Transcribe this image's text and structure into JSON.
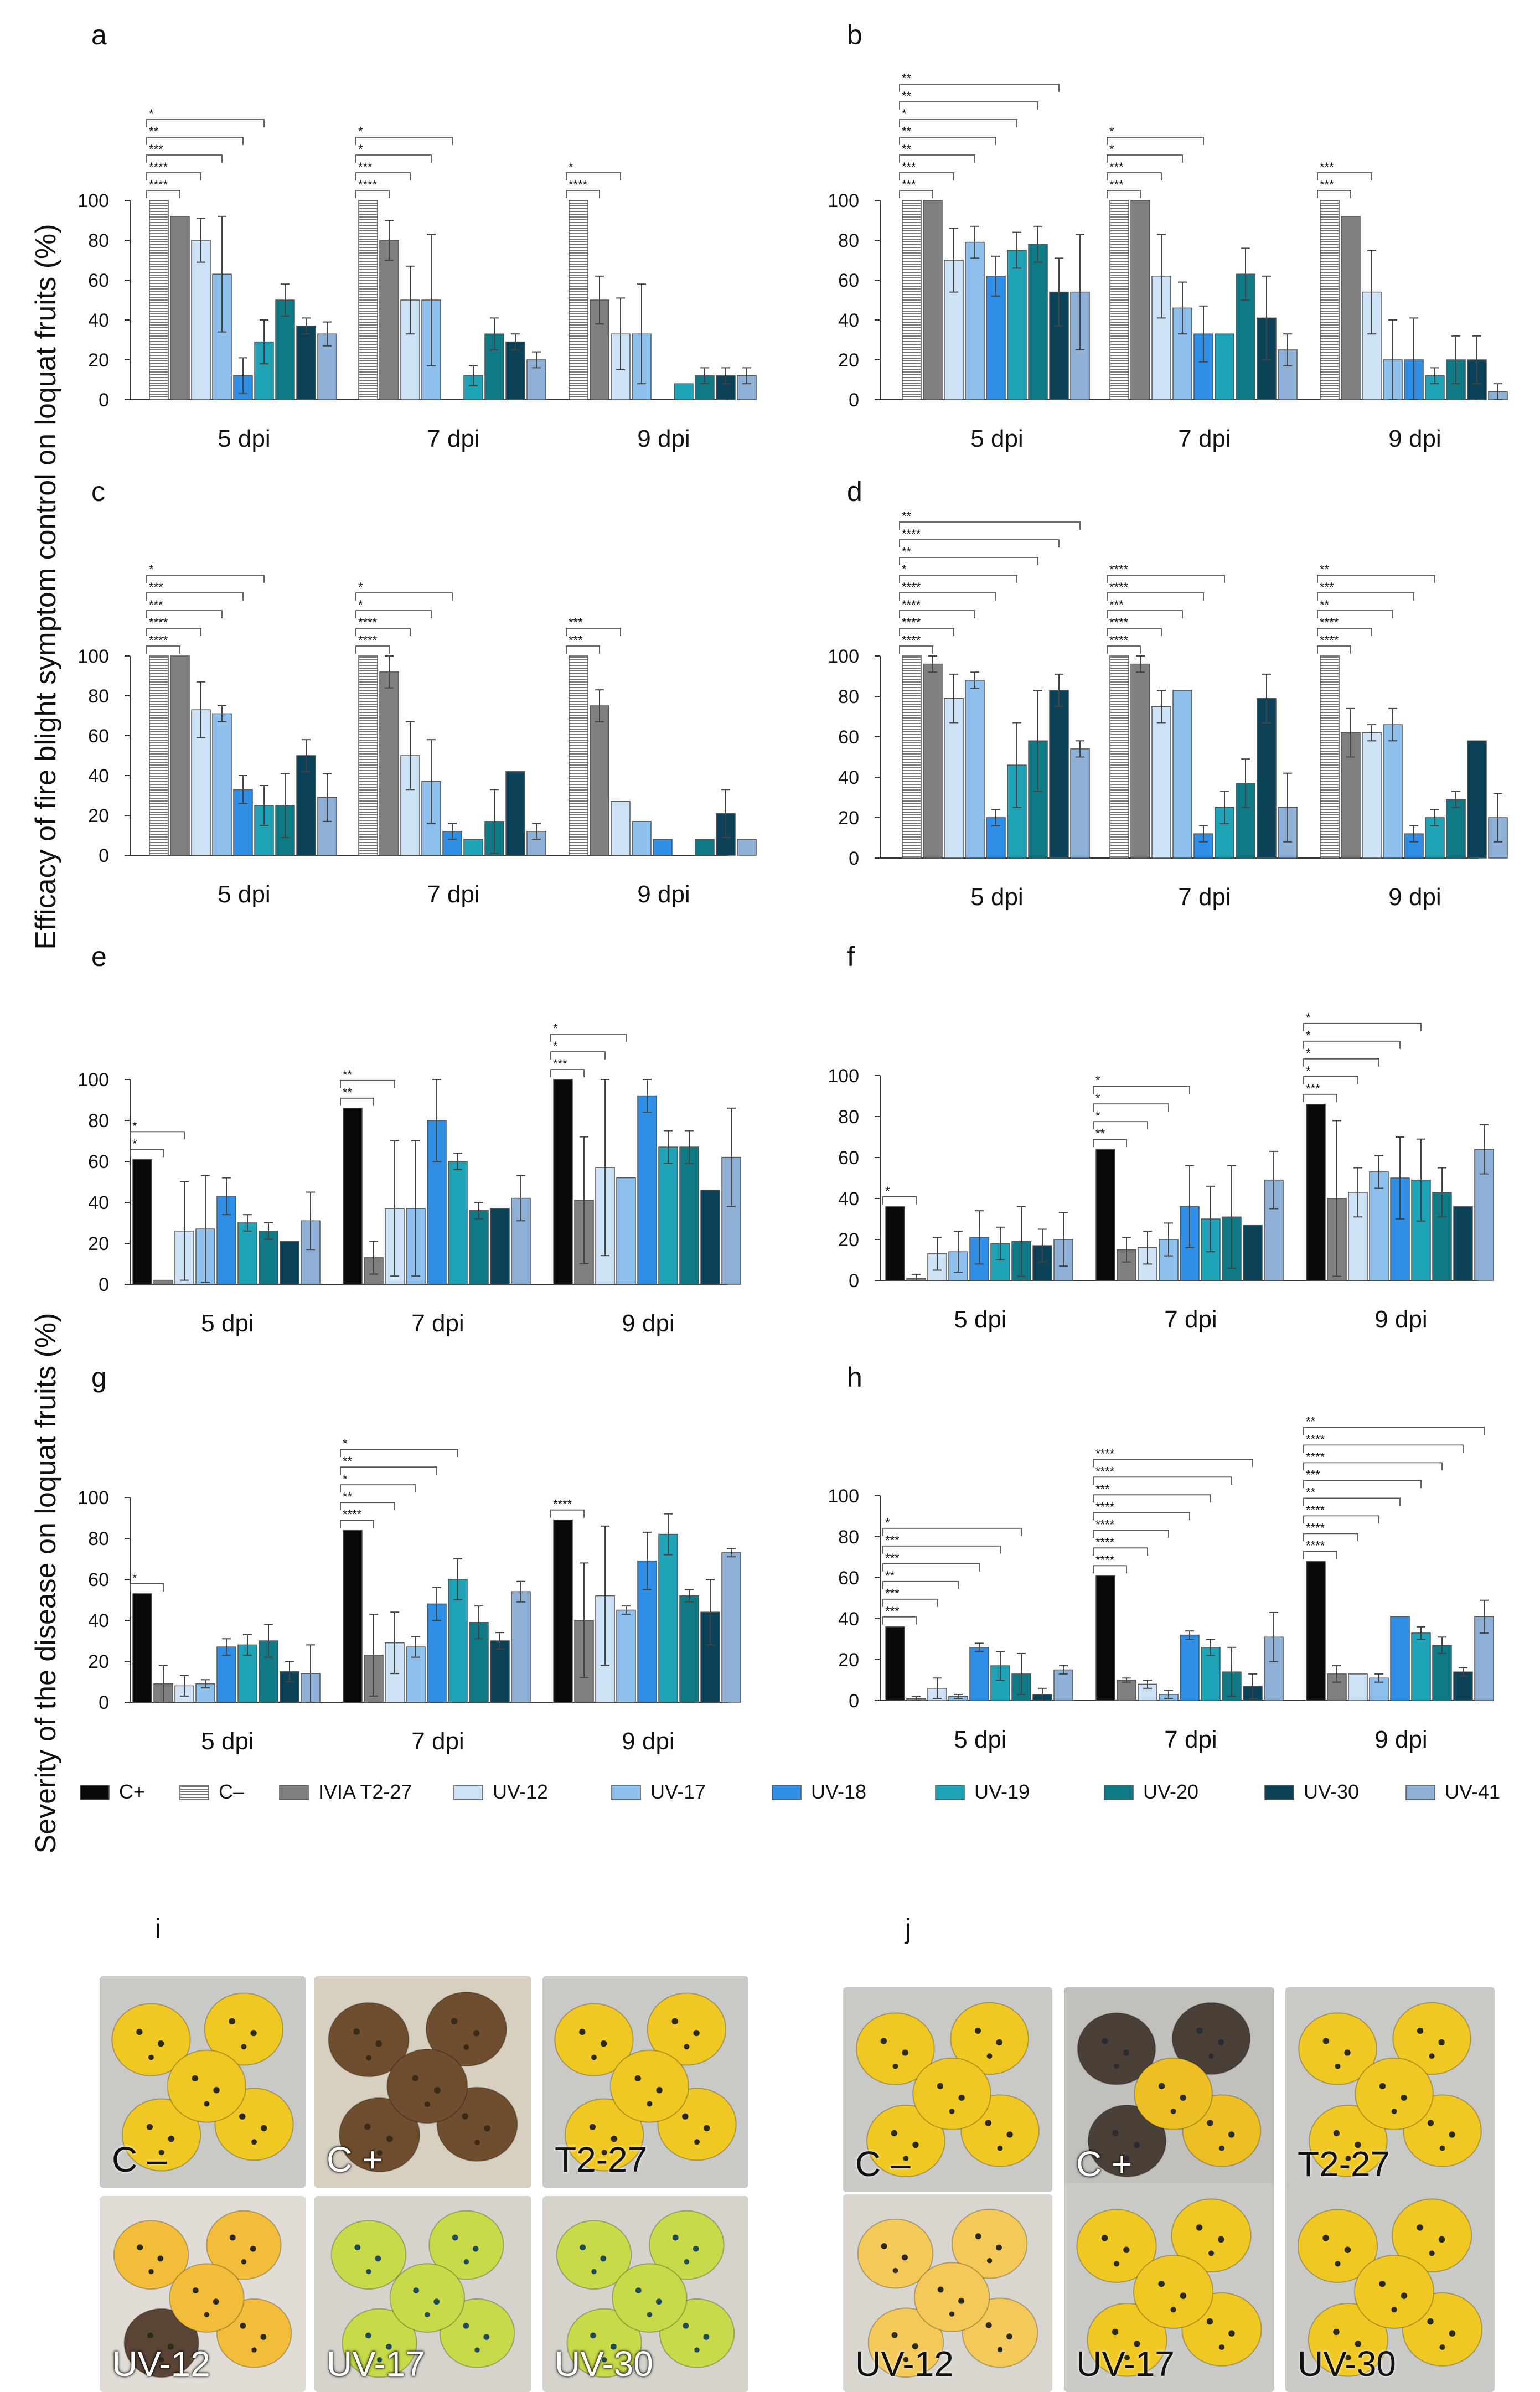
{
  "figure": {
    "ylabel_top": "Efficacy of fire blight symptom control on loquat fruits (%)",
    "ylabel_bottom": "Severity of the disease on loquat fruits (%)"
  },
  "colors": {
    "C+": "#0a0a0a",
    "C-": "#ffffff",
    "IVIA T2-27": "#7f7f7f",
    "UV-12": "#cfe3f7",
    "UV-17": "#8ec0ee",
    "UV-18": "#2f8fe6",
    "UV-19": "#1fa3b6",
    "UV-20": "#0f7a86",
    "UV-30": "#0c4257",
    "UV-41": "#8eb0d6"
  },
  "legend": [
    {
      "name": "C+",
      "color": "#0a0a0a"
    },
    {
      "name": "C–",
      "color": "#ffffff",
      "hatched": true
    },
    {
      "name": "IVIA T2-27",
      "color": "#7f7f7f"
    },
    {
      "name": "UV-12",
      "color": "#cfe3f7"
    },
    {
      "name": "UV-17",
      "color": "#8ec0ee"
    },
    {
      "name": "UV-18",
      "color": "#2f8fe6"
    },
    {
      "name": "UV-19",
      "color": "#1fa3b6"
    },
    {
      "name": "UV-20",
      "color": "#0f7a86"
    },
    {
      "name": "UV-30",
      "color": "#0c4257"
    },
    {
      "name": "UV-41",
      "color": "#8eb0d6"
    }
  ],
  "chart_data": [
    {
      "panel": "a",
      "type": "bar",
      "categories": [
        "5 dpi",
        "7 dpi",
        "9 dpi"
      ],
      "ylim": [
        0,
        100
      ],
      "yticks": [
        0,
        20,
        40,
        60,
        80,
        100
      ],
      "series_names": [
        "C-",
        "IVIA T2-27",
        "UV-12",
        "UV-17",
        "UV-18",
        "UV-19",
        "UV-20",
        "UV-30",
        "UV-41"
      ],
      "values": [
        [
          100,
          92,
          80,
          63,
          12,
          29,
          50,
          37,
          33
        ],
        [
          100,
          80,
          50,
          50,
          0,
          12,
          33,
          29,
          20
        ],
        [
          100,
          50,
          33,
          33,
          0,
          8,
          12,
          12,
          12
        ]
      ],
      "errors": [
        [
          0,
          0,
          11,
          29,
          9,
          11,
          8,
          4,
          6
        ],
        [
          0,
          10,
          17,
          33,
          0,
          5,
          8,
          4,
          4
        ],
        [
          0,
          12,
          18,
          25,
          0,
          0,
          4,
          4,
          4
        ]
      ],
      "annotations": [
        {
          "group": 0,
          "stars": [
            "****",
            "****",
            "***",
            "**",
            "*"
          ]
        },
        {
          "group": 1,
          "stars": [
            "****",
            "***",
            "*",
            "*"
          ]
        },
        {
          "group": 2,
          "stars": [
            "****",
            "*"
          ]
        }
      ]
    },
    {
      "panel": "b",
      "type": "bar",
      "categories": [
        "5 dpi",
        "7 dpi",
        "9 dpi"
      ],
      "ylim": [
        0,
        100
      ],
      "yticks": [
        0,
        20,
        40,
        60,
        80,
        100
      ],
      "series_names": [
        "C-",
        "IVIA T2-27",
        "UV-12",
        "UV-17",
        "UV-18",
        "UV-19",
        "UV-20",
        "UV-30",
        "UV-41"
      ],
      "values": [
        [
          100,
          100,
          70,
          79,
          62,
          75,
          78,
          54,
          54
        ],
        [
          100,
          100,
          62,
          46,
          33,
          33,
          63,
          41,
          25
        ],
        [
          100,
          92,
          54,
          20,
          20,
          12,
          20,
          20,
          4
        ]
      ],
      "errors": [
        [
          0,
          0,
          16,
          8,
          10,
          9,
          9,
          17,
          29
        ],
        [
          0,
          0,
          21,
          13,
          14,
          0,
          13,
          21,
          8
        ],
        [
          0,
          0,
          21,
          20,
          21,
          4,
          12,
          12,
          4
        ]
      ],
      "annotations": [
        {
          "group": 0,
          "stars": [
            "***",
            "***",
            "**",
            "**",
            "*",
            "**",
            "**"
          ]
        },
        {
          "group": 1,
          "stars": [
            "***",
            "***",
            "*",
            "*"
          ]
        },
        {
          "group": 2,
          "stars": [
            "***",
            "***"
          ]
        }
      ]
    },
    {
      "panel": "c",
      "type": "bar",
      "categories": [
        "5 dpi",
        "7 dpi",
        "9 dpi"
      ],
      "ylim": [
        0,
        100
      ],
      "yticks": [
        0,
        20,
        40,
        60,
        80,
        100
      ],
      "series_names": [
        "C-",
        "IVIA T2-27",
        "UV-12",
        "UV-17",
        "UV-18",
        "UV-19",
        "UV-20",
        "UV-30",
        "UV-41"
      ],
      "values": [
        [
          100,
          100,
          73,
          71,
          33,
          25,
          25,
          50,
          29
        ],
        [
          100,
          92,
          50,
          37,
          12,
          8,
          17,
          42,
          12
        ],
        [
          100,
          75,
          27,
          17,
          8,
          0,
          8,
          21,
          8
        ]
      ],
      "errors": [
        [
          0,
          0,
          14,
          4,
          7,
          10,
          16,
          8,
          12
        ],
        [
          0,
          8,
          17,
          21,
          4,
          0,
          16,
          0,
          4
        ],
        [
          0,
          8,
          0,
          0,
          0,
          0,
          0,
          12,
          0
        ]
      ],
      "annotations": [
        {
          "group": 0,
          "stars": [
            "****",
            "****",
            "***",
            "***",
            "*"
          ]
        },
        {
          "group": 1,
          "stars": [
            "****",
            "****",
            "*",
            "*"
          ]
        },
        {
          "group": 2,
          "stars": [
            "***",
            "***"
          ]
        }
      ]
    },
    {
      "panel": "d",
      "type": "bar",
      "categories": [
        "5 dpi",
        "7 dpi",
        "9 dpi"
      ],
      "ylim": [
        0,
        100
      ],
      "yticks": [
        0,
        20,
        40,
        60,
        80,
        100
      ],
      "series_names": [
        "C-",
        "IVIA T2-27",
        "UV-12",
        "UV-17",
        "UV-18",
        "UV-19",
        "UV-20",
        "UV-30",
        "UV-41"
      ],
      "values": [
        [
          100,
          96,
          79,
          88,
          20,
          46,
          58,
          83,
          54
        ],
        [
          100,
          96,
          75,
          83,
          12,
          25,
          37,
          79,
          25
        ],
        [
          100,
          62,
          62,
          66,
          12,
          20,
          29,
          58,
          20
        ]
      ],
      "errors": [
        [
          0,
          4,
          12,
          4,
          4,
          21,
          25,
          8,
          4
        ],
        [
          0,
          4,
          8,
          0,
          4,
          8,
          12,
          12,
          17
        ],
        [
          0,
          12,
          4,
          8,
          4,
          4,
          4,
          0,
          12
        ]
      ],
      "annotations": [
        {
          "group": 0,
          "stars": [
            "****",
            "****",
            "****",
            "****",
            "*",
            "**",
            "****",
            "**"
          ]
        },
        {
          "group": 1,
          "stars": [
            "****",
            "****",
            "***",
            "****",
            "****"
          ]
        },
        {
          "group": 2,
          "stars": [
            "****",
            "****",
            "**",
            "***",
            "**"
          ]
        }
      ]
    },
    {
      "panel": "e",
      "type": "bar",
      "categories": [
        "5 dpi",
        "7 dpi",
        "9 dpi"
      ],
      "ylim": [
        0,
        100
      ],
      "yticks": [
        0,
        20,
        40,
        60,
        80,
        100
      ],
      "series_names": [
        "C+",
        "IVIA T2-27",
        "UV-12",
        "UV-17",
        "UV-18",
        "UV-19",
        "UV-20",
        "UV-30",
        "UV-41"
      ],
      "values": [
        [
          61,
          2,
          26,
          27,
          43,
          30,
          26,
          21,
          31
        ],
        [
          86,
          13,
          37,
          37,
          80,
          60,
          36,
          37,
          42
        ],
        [
          100,
          41,
          57,
          52,
          92,
          67,
          67,
          46,
          62
        ]
      ],
      "errors": [
        [
          0,
          0,
          24,
          26,
          9,
          4,
          4,
          0,
          14
        ],
        [
          0,
          8,
          33,
          33,
          20,
          4,
          4,
          0,
          11
        ],
        [
          0,
          31,
          43,
          0,
          8,
          8,
          8,
          0,
          24
        ]
      ],
      "annotations": [
        {
          "group": 0,
          "stars": [
            "*",
            "*"
          ]
        },
        {
          "group": 1,
          "stars": [
            "**",
            "**"
          ]
        },
        {
          "group": 2,
          "stars": [
            "***",
            "*",
            "*"
          ]
        }
      ]
    },
    {
      "panel": "f",
      "type": "bar",
      "categories": [
        "5 dpi",
        "7 dpi",
        "9 dpi"
      ],
      "ylim": [
        0,
        100
      ],
      "yticks": [
        0,
        20,
        40,
        60,
        80,
        100
      ],
      "series_names": [
        "C+",
        "IVIA T2-27",
        "UV-12",
        "UV-17",
        "UV-18",
        "UV-19",
        "UV-20",
        "UV-30",
        "UV-41"
      ],
      "values": [
        [
          36,
          1,
          13,
          14,
          21,
          18,
          19,
          17,
          20
        ],
        [
          64,
          15,
          16,
          20,
          36,
          30,
          31,
          27,
          49
        ],
        [
          86,
          40,
          43,
          53,
          50,
          49,
          43,
          36,
          64
        ]
      ],
      "errors": [
        [
          0,
          2,
          8,
          10,
          13,
          8,
          17,
          8,
          13
        ],
        [
          0,
          6,
          8,
          8,
          20,
          16,
          25,
          0,
          14
        ],
        [
          0,
          38,
          12,
          8,
          20,
          20,
          12,
          0,
          12
        ]
      ],
      "annotations": [
        {
          "group": 0,
          "stars": [
            "*"
          ]
        },
        {
          "group": 1,
          "stars": [
            "**",
            "*",
            "*",
            "*"
          ]
        },
        {
          "group": 2,
          "stars": [
            "***",
            "*",
            "*",
            "*",
            "*"
          ]
        }
      ]
    },
    {
      "panel": "g",
      "type": "bar",
      "categories": [
        "5 dpi",
        "7 dpi",
        "9 dpi"
      ],
      "ylim": [
        0,
        100
      ],
      "yticks": [
        0,
        20,
        40,
        60,
        80,
        100
      ],
      "series_names": [
        "C+",
        "IVIA T2-27",
        "UV-12",
        "UV-17",
        "UV-18",
        "UV-19",
        "UV-20",
        "UV-30",
        "UV-41"
      ],
      "values": [
        [
          53,
          9,
          8,
          9,
          27,
          28,
          30,
          15,
          14
        ],
        [
          84,
          23,
          29,
          27,
          48,
          60,
          39,
          30,
          54
        ],
        [
          89,
          40,
          52,
          45,
          69,
          82,
          52,
          44,
          73
        ]
      ],
      "errors": [
        [
          0,
          9,
          5,
          2,
          4,
          5,
          8,
          5,
          14
        ],
        [
          0,
          20,
          15,
          5,
          8,
          10,
          8,
          4,
          5
        ],
        [
          0,
          28,
          34,
          2,
          14,
          10,
          3,
          16,
          2
        ]
      ],
      "annotations": [
        {
          "group": 0,
          "stars": [
            "*"
          ]
        },
        {
          "group": 1,
          "stars": [
            "****",
            "**",
            "*",
            "**",
            "*"
          ]
        },
        {
          "group": 2,
          "stars": [
            "****"
          ]
        }
      ]
    },
    {
      "panel": "h",
      "type": "bar",
      "categories": [
        "5 dpi",
        "7 dpi",
        "9 dpi"
      ],
      "ylim": [
        0,
        100
      ],
      "yticks": [
        0,
        20,
        40,
        60,
        80,
        100
      ],
      "series_names": [
        "C+",
        "IVIA T2-27",
        "UV-12",
        "UV-17",
        "UV-18",
        "UV-19",
        "UV-20",
        "UV-30",
        "UV-41"
      ],
      "values": [
        [
          36,
          1,
          6,
          2,
          26,
          17,
          13,
          3,
          15
        ],
        [
          61,
          10,
          8,
          3,
          32,
          26,
          14,
          7,
          31
        ],
        [
          68,
          13,
          13,
          11,
          41,
          33,
          27,
          14,
          41
        ]
      ],
      "errors": [
        [
          0,
          1,
          5,
          1,
          2,
          7,
          10,
          3,
          2
        ],
        [
          0,
          1,
          2,
          2,
          2,
          4,
          12,
          6,
          12
        ],
        [
          0,
          4,
          0,
          2,
          0,
          3,
          4,
          2,
          8
        ]
      ],
      "annotations": [
        {
          "group": 0,
          "stars": [
            "***",
            "***",
            "**",
            "***",
            "***",
            "*"
          ]
        },
        {
          "group": 1,
          "stars": [
            "****",
            "****",
            "****",
            "****",
            "***",
            "****",
            "****"
          ]
        },
        {
          "group": 2,
          "stars": [
            "****",
            "****",
            "****",
            "**",
            "***",
            "****",
            "****",
            "**"
          ]
        }
      ]
    }
  ],
  "photos": {
    "i_label": "i",
    "j_label": "j",
    "i": [
      {
        "caption": "C –",
        "tone": "healthy"
      },
      {
        "caption": "C +",
        "tone": "rotten"
      },
      {
        "caption": "T2-27",
        "tone": "healthy"
      },
      {
        "caption": "UV-12",
        "tone": "mixed"
      },
      {
        "caption": "UV-17",
        "tone": "green"
      },
      {
        "caption": "UV-30",
        "tone": "green"
      }
    ],
    "j": [
      {
        "caption": "C –",
        "tone": "healthy"
      },
      {
        "caption": "C +",
        "tone": "rotten2"
      },
      {
        "caption": "T2-27",
        "tone": "healthy"
      },
      {
        "caption": "UV-12",
        "tone": "pale"
      },
      {
        "caption": "UV-17",
        "tone": "healthy"
      },
      {
        "caption": "UV-30",
        "tone": "healthy"
      }
    ]
  }
}
